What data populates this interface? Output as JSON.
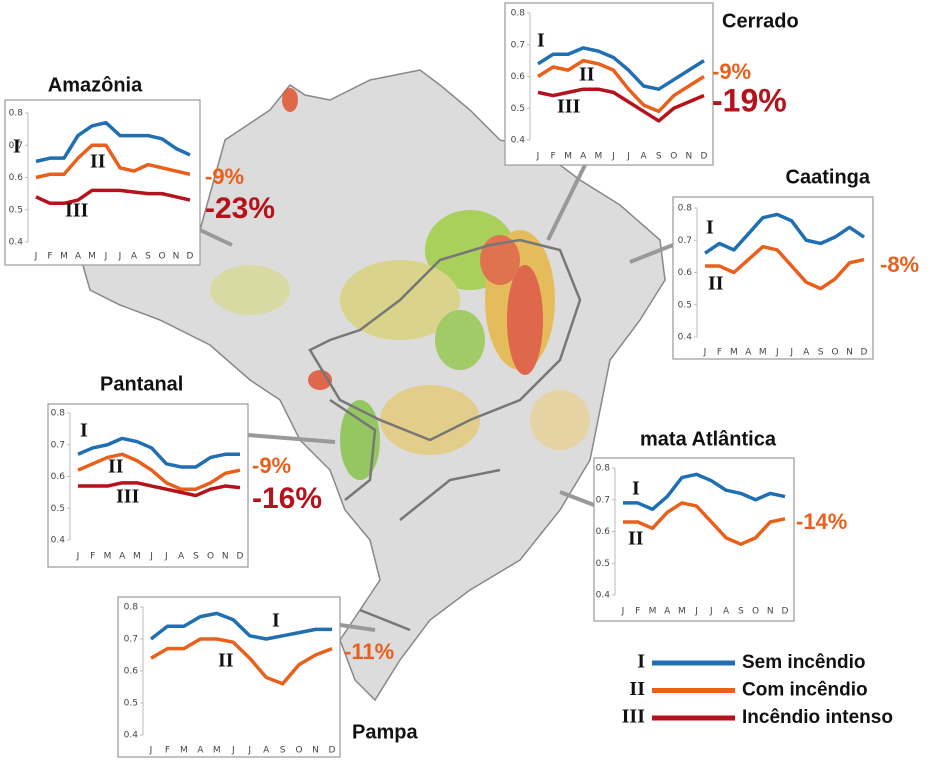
{
  "chart_data": [
    {
      "type": "line",
      "title": "Amazônia",
      "categories": [
        "J",
        "F",
        "M",
        "A",
        "M",
        "J",
        "J",
        "A",
        "S",
        "O",
        "N",
        "D"
      ],
      "ylim": [
        0.4,
        0.8
      ],
      "yticks": [
        0.4,
        0.5,
        0.6,
        0.7,
        0.8
      ],
      "series": [
        {
          "name": "I",
          "color": "#1f6fb2",
          "values": [
            0.65,
            0.66,
            0.66,
            0.73,
            0.76,
            0.77,
            0.73,
            0.73,
            0.73,
            0.72,
            0.69,
            0.67
          ]
        },
        {
          "name": "II",
          "color": "#e8601c",
          "values": [
            0.6,
            0.61,
            0.61,
            0.66,
            0.7,
            0.7,
            0.63,
            0.62,
            0.64,
            0.63,
            0.62,
            0.61
          ]
        },
        {
          "name": "III",
          "color": "#b5121b",
          "values": [
            0.54,
            0.52,
            0.52,
            0.53,
            0.56,
            0.56,
            0.56,
            0.555,
            0.55,
            0.55,
            0.54,
            0.53
          ]
        }
      ],
      "annotations": [
        {
          "text": "-9%",
          "color": "#e8601c"
        },
        {
          "text": "-23%",
          "color": "#b5121b"
        }
      ]
    },
    {
      "type": "line",
      "title": "Cerrado",
      "categories": [
        "J",
        "F",
        "M",
        "A",
        "M",
        "J",
        "J",
        "A",
        "S",
        "O",
        "N",
        "D"
      ],
      "ylim": [
        0.4,
        0.8
      ],
      "yticks": [
        0.4,
        0.5,
        0.6,
        0.7,
        0.8
      ],
      "series": [
        {
          "name": "I",
          "color": "#1f6fb2",
          "values": [
            0.64,
            0.67,
            0.67,
            0.69,
            0.68,
            0.66,
            0.62,
            0.57,
            0.56,
            0.59,
            0.62,
            0.65
          ]
        },
        {
          "name": "II",
          "color": "#e8601c",
          "values": [
            0.6,
            0.63,
            0.62,
            0.65,
            0.64,
            0.62,
            0.56,
            0.51,
            0.49,
            0.54,
            0.57,
            0.6
          ]
        },
        {
          "name": "III",
          "color": "#b5121b",
          "values": [
            0.55,
            0.54,
            0.55,
            0.56,
            0.56,
            0.55,
            0.52,
            0.49,
            0.46,
            0.5,
            0.52,
            0.54
          ]
        }
      ],
      "annotations": [
        {
          "text": "-9%",
          "color": "#e8601c"
        },
        {
          "text": "-19%",
          "color": "#b5121b"
        }
      ]
    },
    {
      "type": "line",
      "title": "Caatinga",
      "categories": [
        "J",
        "F",
        "M",
        "A",
        "M",
        "J",
        "J",
        "A",
        "S",
        "O",
        "N",
        "D"
      ],
      "ylim": [
        0.4,
        0.8
      ],
      "yticks": [
        0.4,
        0.5,
        0.6,
        0.7,
        0.8
      ],
      "series": [
        {
          "name": "I",
          "color": "#1f6fb2",
          "values": [
            0.66,
            0.69,
            0.67,
            0.72,
            0.77,
            0.78,
            0.76,
            0.7,
            0.69,
            0.71,
            0.74,
            0.71
          ]
        },
        {
          "name": "II",
          "color": "#e8601c",
          "values": [
            0.62,
            0.62,
            0.6,
            0.64,
            0.68,
            0.67,
            0.62,
            0.57,
            0.55,
            0.58,
            0.63,
            0.64
          ]
        }
      ],
      "annotations": [
        {
          "text": "-8%",
          "color": "#e8601c"
        }
      ]
    },
    {
      "type": "line",
      "title": "Pantanal",
      "categories": [
        "J",
        "F",
        "M",
        "A",
        "M",
        "J",
        "J",
        "A",
        "S",
        "O",
        "N",
        "D"
      ],
      "ylim": [
        0.4,
        0.8
      ],
      "yticks": [
        0.4,
        0.5,
        0.6,
        0.7,
        0.8
      ],
      "series": [
        {
          "name": "I",
          "color": "#1f6fb2",
          "values": [
            0.67,
            0.69,
            0.7,
            0.72,
            0.71,
            0.69,
            0.64,
            0.63,
            0.63,
            0.66,
            0.67,
            0.67
          ]
        },
        {
          "name": "II",
          "color": "#e8601c",
          "values": [
            0.62,
            0.64,
            0.66,
            0.67,
            0.65,
            0.62,
            0.58,
            0.56,
            0.56,
            0.58,
            0.61,
            0.62
          ]
        },
        {
          "name": "III",
          "color": "#b5121b",
          "values": [
            0.57,
            0.57,
            0.57,
            0.58,
            0.58,
            0.57,
            0.56,
            0.55,
            0.54,
            0.56,
            0.57,
            0.565
          ]
        }
      ],
      "annotations": [
        {
          "text": "-9%",
          "color": "#e8601c"
        },
        {
          "text": "-16%",
          "color": "#b5121b"
        }
      ]
    },
    {
      "type": "line",
      "title": "mata Atlântica",
      "categories": [
        "J",
        "F",
        "M",
        "A",
        "M",
        "J",
        "J",
        "A",
        "S",
        "O",
        "N",
        "D"
      ],
      "ylim": [
        0.4,
        0.8
      ],
      "yticks": [
        0.4,
        0.5,
        0.6,
        0.7,
        0.8
      ],
      "series": [
        {
          "name": "I",
          "color": "#1f6fb2",
          "values": [
            0.69,
            0.69,
            0.67,
            0.71,
            0.77,
            0.78,
            0.76,
            0.73,
            0.72,
            0.7,
            0.72,
            0.71
          ]
        },
        {
          "name": "II",
          "color": "#e8601c",
          "values": [
            0.63,
            0.63,
            0.61,
            0.66,
            0.69,
            0.68,
            0.63,
            0.58,
            0.56,
            0.58,
            0.63,
            0.64
          ]
        }
      ],
      "annotations": [
        {
          "text": "-14%",
          "color": "#e8601c"
        }
      ]
    },
    {
      "type": "line",
      "title": "Pampa",
      "categories": [
        "J",
        "F",
        "M",
        "A",
        "M",
        "J",
        "J",
        "A",
        "S",
        "O",
        "N",
        "D"
      ],
      "ylim": [
        0.4,
        0.8
      ],
      "yticks": [
        0.4,
        0.5,
        0.6,
        0.7,
        0.8
      ],
      "series": [
        {
          "name": "I",
          "color": "#1f6fb2",
          "values": [
            0.7,
            0.74,
            0.74,
            0.77,
            0.78,
            0.76,
            0.71,
            0.7,
            0.71,
            0.72,
            0.73,
            0.73
          ]
        },
        {
          "name": "II",
          "color": "#e8601c",
          "values": [
            0.64,
            0.67,
            0.67,
            0.7,
            0.7,
            0.69,
            0.64,
            0.58,
            0.56,
            0.62,
            0.65,
            0.67
          ]
        }
      ],
      "annotations": [
        {
          "text": "-11%",
          "color": "#e8601c"
        }
      ]
    }
  ],
  "legend": [
    {
      "numeral": "I",
      "label": "Sem incêndio",
      "color": "#1f6fb2"
    },
    {
      "numeral": "II",
      "label": "Com incêndio",
      "color": "#e8601c"
    },
    {
      "numeral": "III",
      "label": "Incêndio intenso",
      "color": "#b5121b"
    }
  ]
}
